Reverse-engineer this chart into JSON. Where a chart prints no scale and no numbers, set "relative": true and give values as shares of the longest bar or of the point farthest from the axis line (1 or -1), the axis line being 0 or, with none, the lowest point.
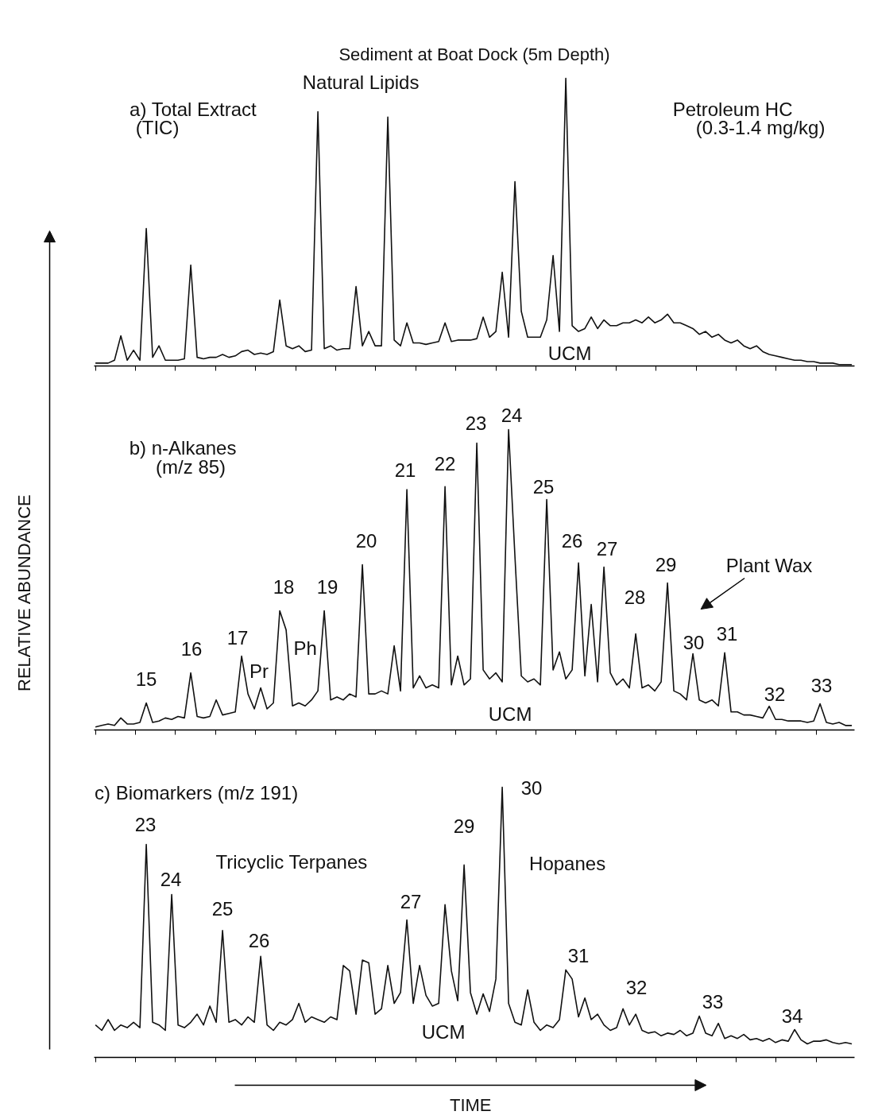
{
  "chart_data": [
    {
      "type": "line",
      "title": "Sediment at Boat Dock (5m Depth)",
      "relative": true,
      "tick_labels": false,
      "categories": [
        null,
        null,
        null,
        null,
        null,
        null,
        null,
        null,
        null,
        null,
        null,
        null,
        null,
        null,
        null,
        null,
        null,
        null,
        null,
        null,
        null,
        null,
        null,
        null,
        null,
        null,
        null,
        null,
        null,
        null,
        null,
        null,
        null,
        null,
        null,
        null,
        null,
        null,
        null,
        null,
        null,
        null,
        null,
        null,
        null,
        null,
        null,
        null,
        null,
        null,
        null,
        null,
        null,
        null,
        null,
        null,
        null,
        null,
        null,
        null,
        null,
        null,
        null,
        null,
        null,
        null,
        null,
        null,
        null,
        null,
        null,
        null,
        null,
        null,
        null,
        null,
        null,
        null,
        null,
        null,
        null,
        null,
        null,
        null,
        null,
        null,
        null,
        null,
        null,
        null,
        null,
        null,
        null,
        null,
        null,
        null,
        null,
        null,
        null,
        null,
        null,
        null,
        null,
        null,
        null,
        null,
        null,
        null,
        null,
        null,
        null,
        null,
        null,
        null,
        null,
        null,
        null,
        null,
        null,
        null
      ],
      "series": [
        {
          "color": "#111111",
          "values": [
            0.01,
            0.01,
            0.01,
            0.02,
            0.105,
            0.02,
            0.055,
            0.02,
            0.478,
            0.03,
            0.07,
            0.02,
            0.02,
            0.02,
            0.025,
            0.351,
            0.03,
            0.025,
            0.03,
            0.03,
            0.04,
            0.03,
            0.035,
            0.05,
            0.055,
            0.04,
            0.045,
            0.04,
            0.05,
            0.229,
            0.07,
            0.06,
            0.07,
            0.05,
            0.055,
            0.884,
            0.06,
            0.07,
            0.055,
            0.06,
            0.06,
            0.276,
            0.07,
            0.12,
            0.07,
            0.07,
            0.865,
            0.09,
            0.07,
            0.15,
            0.08,
            0.08,
            0.075,
            0.08,
            0.085,
            0.15,
            0.085,
            0.09,
            0.09,
            0.09,
            0.095,
            0.17,
            0.1,
            0.12,
            0.326,
            0.1,
            0.641,
            0.19,
            0.1,
            0.1,
            0.1,
            0.16,
            0.384,
            0.12,
            1,
            0.14,
            0.12,
            0.13,
            0.17,
            0.13,
            0.16,
            0.14,
            0.14,
            0.15,
            0.15,
            0.16,
            0.15,
            0.17,
            0.15,
            0.16,
            0.18,
            0.15,
            0.15,
            0.14,
            0.13,
            0.11,
            0.12,
            0.1,
            0.11,
            0.09,
            0.08,
            0.09,
            0.07,
            0.06,
            0.07,
            0.05,
            0.04,
            0.035,
            0.03,
            0.025,
            0.02,
            0.02,
            0.015,
            0.015,
            0.01,
            0.01,
            0.01,
            0.005,
            0.005,
            0.005
          ]
        }
      ],
      "annotations": [
        "a) Total Extract",
        "(TIC)",
        "Natural Lipids",
        "Petroleum HC",
        "(0.3-1.4 mg/kg)",
        "UCM"
      ]
    },
    {
      "type": "line",
      "ylabel": "RELATIVE ABUNDANCE",
      "relative": true,
      "tick_labels": false,
      "categories": [
        null,
        null,
        null,
        null,
        null,
        null,
        null,
        null,
        null,
        null,
        null,
        null,
        null,
        null,
        null,
        null,
        null,
        null,
        null,
        null,
        null,
        null,
        null,
        null,
        null,
        null,
        null,
        null,
        null,
        null,
        null,
        null,
        null,
        null,
        null,
        null,
        null,
        null,
        null,
        null,
        null,
        null,
        null,
        null,
        null,
        null,
        null,
        null,
        null,
        null,
        null,
        null,
        null,
        null,
        null,
        null,
        null,
        null,
        null,
        null,
        null,
        null,
        null,
        null,
        null,
        null,
        null,
        null,
        null,
        null,
        null,
        null,
        null,
        null,
        null,
        null,
        null,
        null,
        null,
        null,
        null,
        null,
        null,
        null,
        null,
        null,
        null,
        null,
        null,
        null,
        null,
        null,
        null,
        null,
        null,
        null,
        null,
        null,
        null,
        null,
        null,
        null,
        null,
        null,
        null,
        null,
        null,
        null,
        null,
        null,
        null,
        null,
        null,
        null,
        null,
        null,
        null,
        null,
        null,
        null
      ],
      "series": [
        {
          "color": "#111111",
          "values": [
            0.01,
            0.015,
            0.02,
            0.015,
            0.04,
            0.02,
            0.02,
            0.025,
            0.09,
            0.025,
            0.03,
            0.04,
            0.035,
            0.045,
            0.04,
            0.19,
            0.045,
            0.04,
            0.045,
            0.1,
            0.05,
            0.055,
            0.06,
            0.246,
            0.12,
            0.07,
            0.14,
            0.07,
            0.09,
            0.397,
            0.333,
            0.08,
            0.09,
            0.08,
            0.1,
            0.13,
            0.397,
            0.1,
            0.11,
            0.1,
            0.12,
            0.11,
            0.55,
            0.12,
            0.12,
            0.13,
            0.12,
            0.28,
            0.13,
            0.8,
            0.14,
            0.18,
            0.14,
            0.15,
            0.14,
            0.81,
            0.15,
            0.246,
            0.15,
            0.17,
            0.955,
            0.2,
            0.17,
            0.19,
            0.16,
            1,
            0.577,
            0.18,
            0.16,
            0.17,
            0.15,
            0.767,
            0.2,
            0.26,
            0.17,
            0.2,
            0.556,
            0.18,
            0.418,
            0.16,
            0.542,
            0.19,
            0.15,
            0.17,
            0.14,
            0.32,
            0.14,
            0.15,
            0.13,
            0.16,
            0.489,
            0.13,
            0.12,
            0.1,
            0.254,
            0.1,
            0.09,
            0.1,
            0.08,
            0.257,
            0.06,
            0.06,
            0.05,
            0.05,
            0.045,
            0.04,
            0.079,
            0.035,
            0.035,
            0.03,
            0.03,
            0.03,
            0.025,
            0.03,
            0.087,
            0.025,
            0.02,
            0.025,
            0.015,
            0.015
          ]
        }
      ],
      "annotations": [
        "b) n-Alkanes",
        "(m/z 85)",
        "15",
        "16",
        "17",
        "Pr",
        "18",
        "Ph",
        "19",
        "20",
        "21",
        "22",
        "23",
        "24",
        "25",
        "26",
        "27",
        "28",
        "29",
        "Plant Wax",
        "30",
        "31",
        "32",
        "33",
        "UCM"
      ]
    },
    {
      "type": "line",
      "xlabel": "TIME",
      "relative": true,
      "tick_labels": false,
      "categories": [
        null,
        null,
        null,
        null,
        null,
        null,
        null,
        null,
        null,
        null,
        null,
        null,
        null,
        null,
        null,
        null,
        null,
        null,
        null,
        null,
        null,
        null,
        null,
        null,
        null,
        null,
        null,
        null,
        null,
        null,
        null,
        null,
        null,
        null,
        null,
        null,
        null,
        null,
        null,
        null,
        null,
        null,
        null,
        null,
        null,
        null,
        null,
        null,
        null,
        null,
        null,
        null,
        null,
        null,
        null,
        null,
        null,
        null,
        null,
        null,
        null,
        null,
        null,
        null,
        null,
        null,
        null,
        null,
        null,
        null,
        null,
        null,
        null,
        null,
        null,
        null,
        null,
        null,
        null,
        null,
        null,
        null,
        null,
        null,
        null,
        null,
        null,
        null,
        null,
        null,
        null,
        null,
        null,
        null,
        null,
        null,
        null,
        null,
        null,
        null,
        null,
        null,
        null,
        null,
        null,
        null,
        null,
        null,
        null,
        null,
        null,
        null,
        null,
        null,
        null,
        null,
        null,
        null,
        null,
        null
      ],
      "series": [
        {
          "color": "#111111",
          "values": [
            0.12,
            0.1,
            0.14,
            0.1,
            0.12,
            0.11,
            0.13,
            0.11,
            0.788,
            0.13,
            0.12,
            0.1,
            0.603,
            0.12,
            0.11,
            0.13,
            0.16,
            0.12,
            0.19,
            0.13,
            0.47,
            0.13,
            0.14,
            0.12,
            0.15,
            0.13,
            0.374,
            0.12,
            0.1,
            0.13,
            0.12,
            0.14,
            0.2,
            0.13,
            0.15,
            0.14,
            0.13,
            0.15,
            0.14,
            0.34,
            0.32,
            0.16,
            0.36,
            0.35,
            0.16,
            0.18,
            0.34,
            0.2,
            0.24,
            0.509,
            0.2,
            0.34,
            0.23,
            0.19,
            0.2,
            0.565,
            0.32,
            0.21,
            0.712,
            0.24,
            0.16,
            0.235,
            0.17,
            0.29,
            1,
            0.2,
            0.13,
            0.12,
            0.25,
            0.13,
            0.1,
            0.12,
            0.11,
            0.14,
            0.324,
            0.29,
            0.15,
            0.22,
            0.14,
            0.16,
            0.12,
            0.1,
            0.11,
            0.18,
            0.12,
            0.16,
            0.1,
            0.09,
            0.095,
            0.08,
            0.09,
            0.085,
            0.1,
            0.08,
            0.09,
            0.153,
            0.09,
            0.08,
            0.126,
            0.07,
            0.08,
            0.07,
            0.085,
            0.065,
            0.07,
            0.06,
            0.07,
            0.055,
            0.065,
            0.06,
            0.103,
            0.065,
            0.05,
            0.06,
            0.06,
            0.065,
            0.055,
            0.05,
            0.055,
            0.05
          ]
        }
      ],
      "annotations": [
        "c) Biomarkers (m/z 191)",
        "23",
        "24",
        "Tricyclic Terpanes",
        "25",
        "26",
        "27",
        "29",
        "30",
        "Hopanes",
        "31",
        "32",
        "33",
        "34",
        "UCM"
      ]
    }
  ]
}
